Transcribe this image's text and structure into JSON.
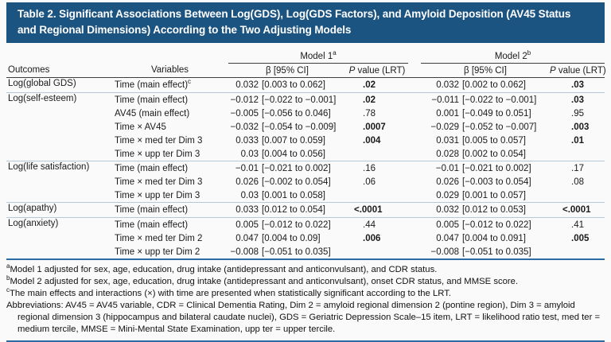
{
  "table": {
    "title": "Table 2. Significant Associations Between Log(GDS), Log(GDS Factors), and Amyloid Deposition (AV45 Status and Regional Dimensions) According to the Two Adjusting Models",
    "header": {
      "model1": "Model 1",
      "model1_sup": "a",
      "model2": "Model 2",
      "model2_sup": "b",
      "outcomes": "Outcomes",
      "variables": "Variables",
      "beta": "β [95% CI]",
      "p_italic": "P",
      "p_rest": " value (LRT)"
    },
    "groups": [
      {
        "outcome": "Log(global GDS)",
        "rows": [
          {
            "variable": "Time (main effect)",
            "variable_sup": "c",
            "m1_beta": "0.032 [0.003 to 0.062]",
            "m1_p": ".02",
            "m1_p_bold": true,
            "m2_beta": "0.032 [0.002 to 0.062]",
            "m2_p": ".03",
            "m2_p_bold": true
          }
        ]
      },
      {
        "outcome": "Log(self-esteem)",
        "rows": [
          {
            "variable": "Time (main effect)",
            "m1_beta": "−0.012 [−0.022 to −0.001]",
            "m1_p": ".02",
            "m1_p_bold": true,
            "m2_beta": "−0.011 [−0.022 to −0.001]",
            "m2_p": ".03",
            "m2_p_bold": true
          },
          {
            "variable": "AV45 (main effect)",
            "m1_beta": "−0.005 [−0.056 to 0.046]",
            "m1_p": ".78",
            "m1_p_bold": false,
            "m2_beta": "0.001 [−0.049 to 0.051]",
            "m2_p": ".95",
            "m2_p_bold": false
          },
          {
            "variable": "Time × AV45",
            "m1_beta": "−0.032 [−0.054 to −0.009]",
            "m1_p": ".0007",
            "m1_p_bold": true,
            "m2_beta": "−0.029 [−0.052 to −0.007]",
            "m2_p": ".003",
            "m2_p_bold": true
          },
          {
            "variable": "Time × med ter Dim 3",
            "m1_beta": "0.033 [0.007 to 0.059]",
            "m1_p": ".004",
            "m1_p_bold": true,
            "m2_beta": "0.031 [0.005 to 0.057]",
            "m2_p": ".01",
            "m2_p_bold": true
          },
          {
            "variable": "Time × upp ter Dim 3",
            "m1_beta": "0.03 [0.004 to 0.056]",
            "m1_p": "",
            "m1_p_bold": false,
            "m2_beta": "0.028 [0.002 to 0.054]",
            "m2_p": "",
            "m2_p_bold": false
          }
        ]
      },
      {
        "outcome": "Log(life satisfaction)",
        "rows": [
          {
            "variable": "Time (main effect)",
            "m1_beta": "−0.01 [−0.021 to 0.002]",
            "m1_p": ".16",
            "m1_p_bold": false,
            "m2_beta": "−0.01 [−0.021 to 0.002]",
            "m2_p": ".17",
            "m2_p_bold": false
          },
          {
            "variable": "Time × med ter Dim 3",
            "m1_beta": "0.026 [−0.002 to 0.054]",
            "m1_p": ".06",
            "m1_p_bold": false,
            "m2_beta": "0.026 [−0.003 to 0.054]",
            "m2_p": ".08",
            "m2_p_bold": false
          },
          {
            "variable": "Time × upp ter Dim 3",
            "m1_beta": "0.03 [0.001 to 0.058]",
            "m1_p": "",
            "m1_p_bold": false,
            "m2_beta": "0.029 [0.001 to 0.057]",
            "m2_p": "",
            "m2_p_bold": false
          }
        ]
      },
      {
        "outcome": "Log(apathy)",
        "rows": [
          {
            "variable": "Time (main effect)",
            "m1_beta": "0.033 [0.012 to 0.054]",
            "m1_p": "<.0001",
            "m1_p_bold": true,
            "m2_beta": "0.032 [0.012 to 0.053]",
            "m2_p": "<.0001",
            "m2_p_bold": true
          }
        ]
      },
      {
        "outcome": "Log(anxiety)",
        "rows": [
          {
            "variable": "Time (main effect)",
            "m1_beta": "0.005 [−0.012 to 0.022]",
            "m1_p": ".44",
            "m1_p_bold": false,
            "m2_beta": "0.005 [−0.012 to 0.022]",
            "m2_p": ".41",
            "m2_p_bold": false
          },
          {
            "variable": "Time × med ter Dim 2",
            "m1_beta": "0.047 [0.004 to 0.09]",
            "m1_p": ".006",
            "m1_p_bold": true,
            "m2_beta": "0.047 [0.004 to 0.091]",
            "m2_p": ".005",
            "m2_p_bold": true
          },
          {
            "variable": "Time × upp ter Dim 2",
            "m1_beta": "−0.008 [−0.051 to 0.035]",
            "m1_p": "",
            "m1_p_bold": false,
            "m2_beta": "−0.008 [−0.051 to 0.035]",
            "m2_p": "",
            "m2_p_bold": false
          }
        ]
      }
    ],
    "footnotes": [
      {
        "sup": "a",
        "text": "Model 1 adjusted for sex, age, education, drug intake (antidepressant and anticonvulsant), and CDR status."
      },
      {
        "sup": "b",
        "text": "Model 2 adjusted for sex, age, education, drug intake (antidepressant and anticonvulsant), onset CDR status, and MMSE score."
      },
      {
        "sup": "c",
        "text": "The main effects and interactions (×) with time are presented when statistically significant according to the LRT."
      }
    ],
    "abbreviations": "Abbreviations: AV45 = AV45 variable, CDR = Clinical Dementia Rating, Dim 2 = amyloid regional dimension 2 (pontine region), Dim 3 = amyloid regional dimension 3 (hippocampus and bilateral caudate nuclei), GDS = Geriatric Depression Scale–15 item, LRT = likelihood ratio test, med ter = medium tercile, MMSE = Mini-Mental State Examination, upp ter = upper tercile."
  },
  "colors": {
    "title_bar": "#1b5381",
    "thick_rule": "#2d6ba3",
    "group_separator": "#b5c9da",
    "header_rule": "#3d3d3d"
  }
}
